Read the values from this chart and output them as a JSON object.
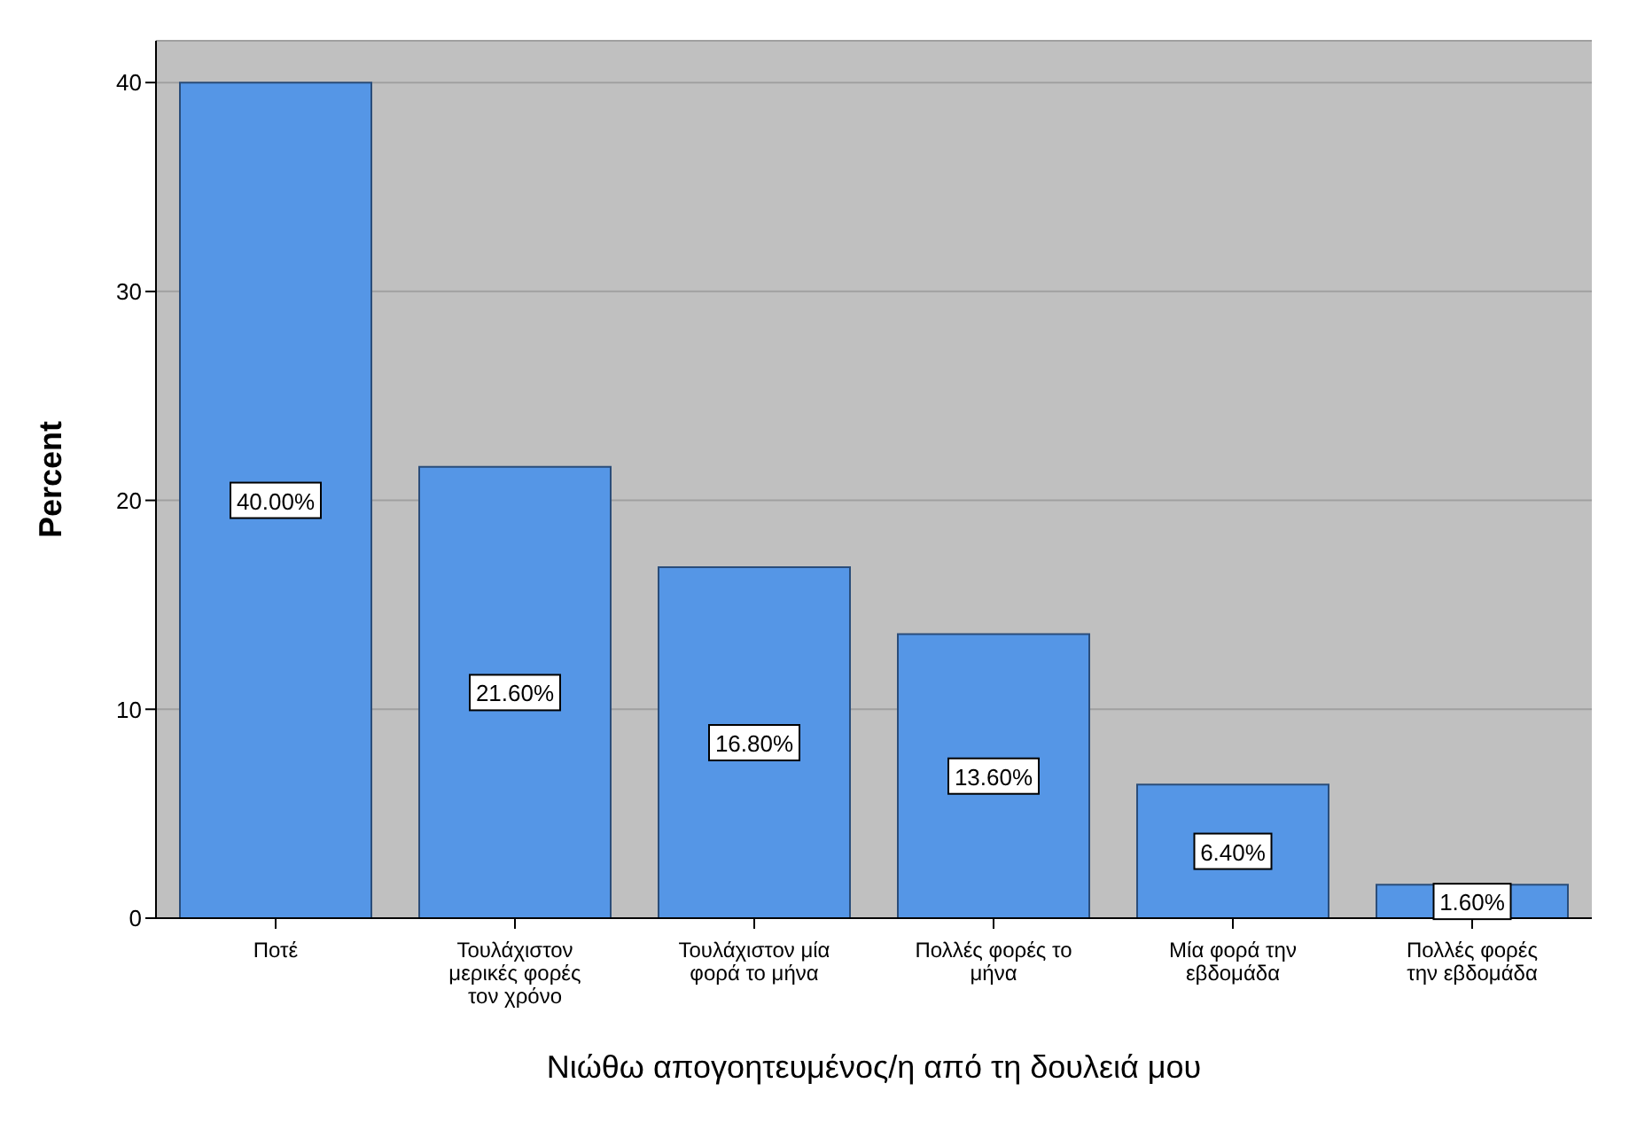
{
  "chart_data": {
    "type": "bar",
    "xlabel": "Νιώθω απογοητευμένος/η από τη δουλειά μου",
    "ylabel": "Percent",
    "categories": [
      "Ποτέ",
      "Τουλάχιστον μερικές φορές τον χρόνο",
      "Τουλάχιστον μία φορά το μήνα",
      "Πολλές φορές το μήνα",
      "Μία φορά την εβδομάδα",
      "Πολλές φορές την εβδομάδα"
    ],
    "values": [
      40,
      21.6,
      16.8,
      13.6,
      6.4,
      1.6
    ],
    "value_labels": [
      "40.00%",
      "21.60%",
      "16.80%",
      "13.60%",
      "6.40%",
      "1.60%"
    ],
    "color": "#5596e6",
    "ylim": [
      0,
      42
    ],
    "yticks": [
      0,
      10,
      20,
      30,
      40
    ],
    "grid": "y"
  }
}
